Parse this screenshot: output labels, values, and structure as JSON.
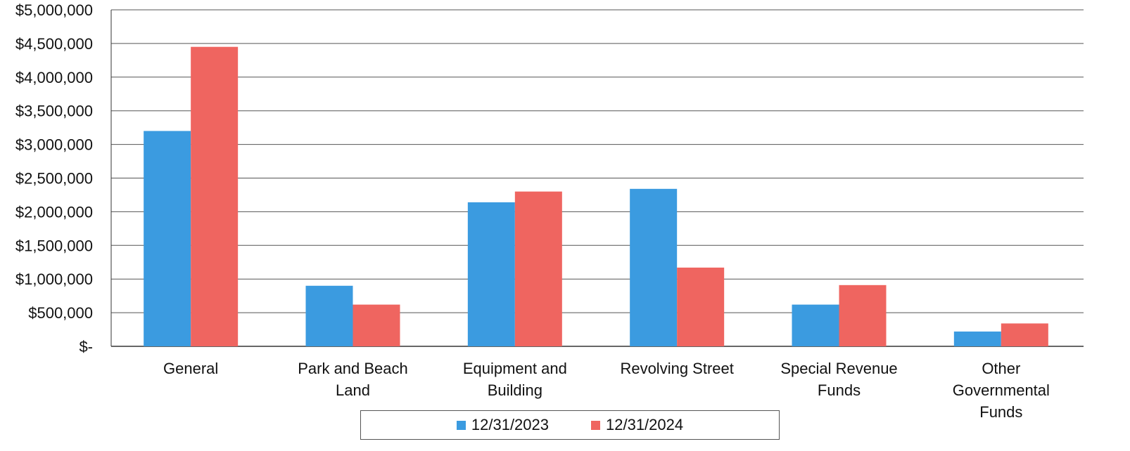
{
  "colors": {
    "series_2023": "#3b9be0",
    "series_2024": "#ef6560",
    "grid": "#555555",
    "axis": "#333333"
  },
  "chart_data": {
    "type": "bar",
    "categories": [
      [
        "General"
      ],
      [
        "Park and Beach",
        "Land"
      ],
      [
        "Equipment and",
        "Building"
      ],
      [
        "Revolving Street"
      ],
      [
        "Special Revenue",
        "Funds"
      ],
      [
        "Other",
        "Governmental",
        "Funds"
      ]
    ],
    "series": [
      {
        "name": "12/31/2023",
        "values": [
          3200000,
          900000,
          2140000,
          2340000,
          620000,
          220000
        ]
      },
      {
        "name": "12/31/2024",
        "values": [
          4450000,
          620000,
          2300000,
          1170000,
          910000,
          340000
        ]
      }
    ],
    "ylim": [
      0,
      5000000
    ],
    "yticks": [
      0,
      500000,
      1000000,
      1500000,
      2000000,
      2500000,
      3000000,
      3500000,
      4000000,
      4500000,
      5000000
    ],
    "ytick_labels": [
      "$-",
      "$500,000",
      "$1,000,000",
      "$1,500,000",
      "$2,000,000",
      "$2,500,000",
      "$3,000,000",
      "$3,500,000",
      "$4,000,000",
      "$4,500,000",
      "$5,000,000"
    ],
    "grid": true,
    "legend_position": "bottom"
  }
}
